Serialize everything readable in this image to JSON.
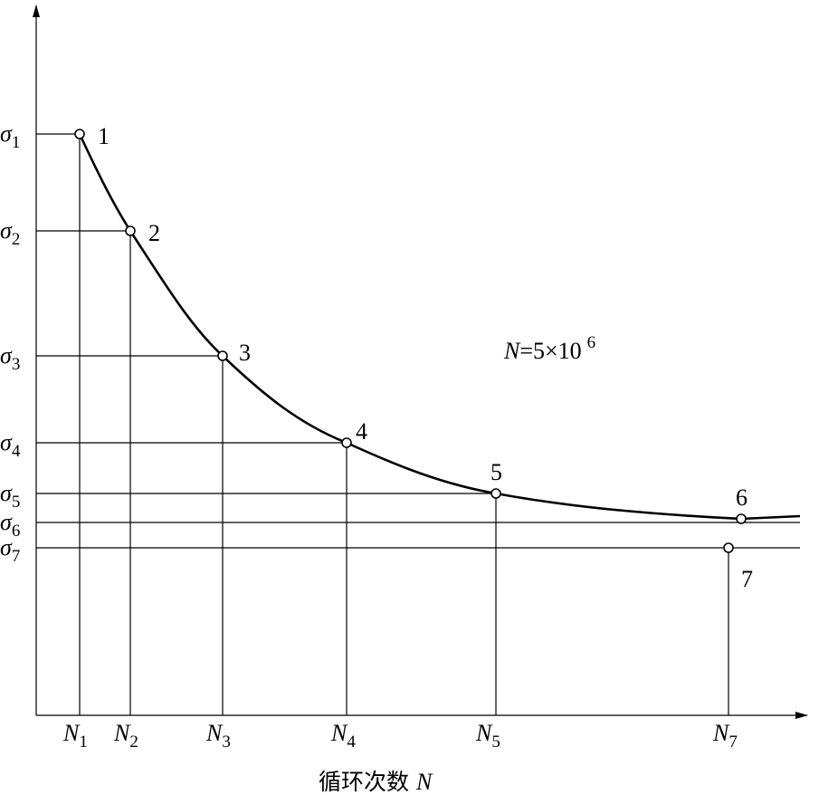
{
  "y_labels": [
    {
      "symbol": "σ",
      "sub": "1"
    },
    {
      "symbol": "σ",
      "sub": "2"
    },
    {
      "symbol": "σ",
      "sub": "3"
    },
    {
      "symbol": "σ",
      "sub": "4"
    },
    {
      "symbol": "σ",
      "sub": "5"
    },
    {
      "symbol": "σ",
      "sub": "6"
    },
    {
      "symbol": "σ",
      "sub": "7"
    }
  ],
  "x_labels": [
    {
      "symbol": "N",
      "sub": "1"
    },
    {
      "symbol": "N",
      "sub": "2"
    },
    {
      "symbol": "N",
      "sub": "3"
    },
    {
      "symbol": "N",
      "sub": "4"
    },
    {
      "symbol": "N",
      "sub": "5"
    },
    {
      "symbol": "N",
      "sub": "7"
    }
  ],
  "points": [
    "1",
    "2",
    "3",
    "4",
    "5",
    "6",
    "7"
  ],
  "annotation": {
    "var": "N",
    "rest": "=5×10",
    "exp": "6"
  },
  "x_axis_label": {
    "text": "循环次数",
    "var": "N"
  }
}
